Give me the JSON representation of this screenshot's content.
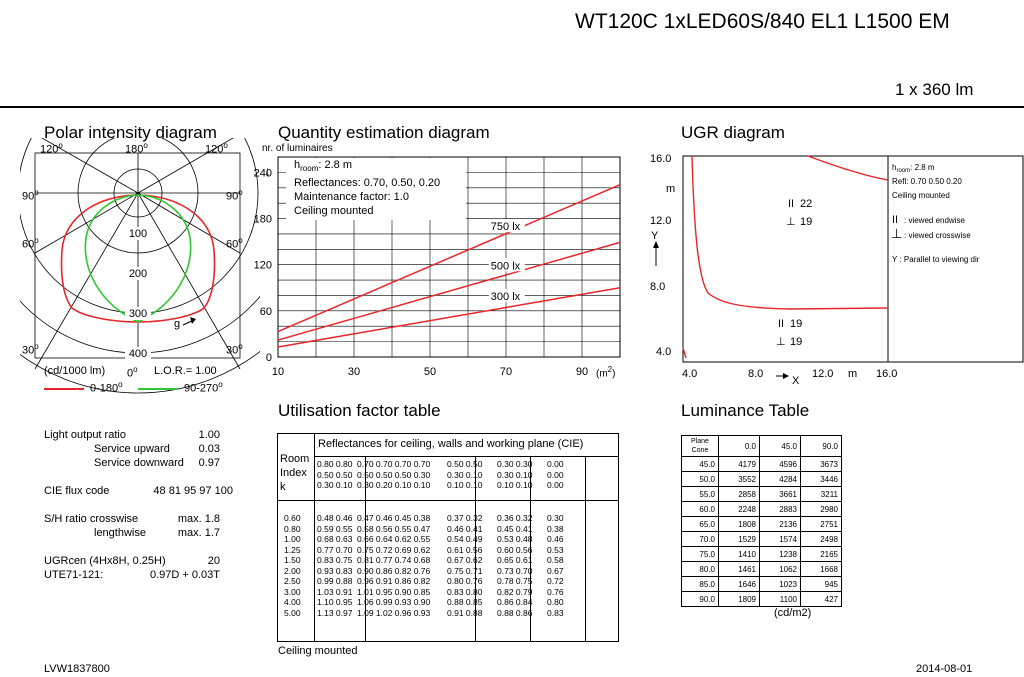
{
  "header": {
    "product_name": "WT120C 1xLED60S/840 EL1 L1500 EM",
    "lamp_flux": "1 x 360 lm"
  },
  "polar": {
    "title": "Polar intensity diagram",
    "angle_labels": {
      "top_left": "120",
      "top_center": "180",
      "top_right": "120",
      "mid_left_90": "90",
      "mid_right_90": "90",
      "mid_left_60": "60",
      "mid_right_60": "60",
      "bottom_left_30": "30",
      "bottom_center": "0",
      "bottom_right_30": "30"
    },
    "degree_sign": "o",
    "ring_labels": [
      "100",
      "200",
      "300",
      "400"
    ],
    "gamma_label": "g",
    "unit_label": "(cd/1000 lm)",
    "lor_label": "L.O.R.= 1.00",
    "legend": [
      {
        "label": "0-180",
        "color": "#e8262a"
      },
      {
        "label": "90-270",
        "color": "#2ec82e"
      }
    ]
  },
  "quantity": {
    "title": "Quantity estimation diagram",
    "y_axis_title": "nr. of luminaires",
    "info": {
      "hroom_label": "h",
      "hroom_sub": "room",
      "hroom_value": ": 2.8 m",
      "reflectances": "Reflectances: 0.70, 0.50, 0.20",
      "maintenance": "Maintenance factor: 1.0",
      "mounting": "Ceiling mounted"
    },
    "x_unit": "(m",
    "x_unit_sup": "2",
    "x_unit_close": ")"
  },
  "chart_data": {
    "type": "line",
    "xlabel": "(m2)",
    "ylabel": "nr. of luminaires",
    "xlim": [
      10,
      100
    ],
    "ylim": [
      0,
      260
    ],
    "x_ticks": [
      10,
      30,
      50,
      70,
      90
    ],
    "y_ticks": [
      0,
      60,
      120,
      180,
      240
    ],
    "series": [
      {
        "name": "750 lx",
        "x": [
          10,
          100
        ],
        "y": [
          33,
          224
        ]
      },
      {
        "name": "500 lx",
        "x": [
          10,
          100
        ],
        "y": [
          22,
          149
        ]
      },
      {
        "name": "300 lx",
        "x": [
          10,
          100
        ],
        "y": [
          13,
          90
        ]
      }
    ]
  },
  "ugr": {
    "title": "UGR diagram",
    "y_ticks": [
      "16.0",
      "12.0",
      "8.0",
      "4.0"
    ],
    "x_ticks": [
      "4.0",
      "8.0",
      "12.0",
      "16.0"
    ],
    "m_label_y": "m",
    "m_label_x": "m",
    "y_axis": "Y",
    "x_axis": "X",
    "val_endwise_top": "22",
    "val_crosswise_top": "19",
    "val_endwise_bottom": "19",
    "val_crosswise_bottom": "19",
    "legend": {
      "hroom_label": "h",
      "hroom_sub": "room",
      "hroom_value": ": 2.8 m",
      "refl": "Refl: 0.70 0.50 0.20",
      "mount": "Ceiling mounted",
      "endwise": ": viewed endwise",
      "crosswise": ": viewed crosswise",
      "parallel": "Y   : Parallel to viewing dir"
    }
  },
  "specs": {
    "light_output_ratio_label": "Light output ratio",
    "light_output_ratio": "1.00",
    "service_upward_label": "Service upward",
    "service_upward": "0.03",
    "service_downward_label": "Service downward",
    "service_downward": "0.97",
    "cie_flux_label": "CIE flux code",
    "cie_flux": "48  81  95  97  100",
    "sh_ratio_label": "S/H ratio",
    "crosswise_label": "crosswise",
    "crosswise": "max. 1.8",
    "lengthwise_label": "lengthwise",
    "lengthwise": "max. 1.7",
    "ugr_label": "UGRcen (4Hx8H, 0.25H)",
    "ugr": "20",
    "ute_label": "UTE71-121:",
    "ute": "0.97D + 0.03T"
  },
  "utilisation": {
    "title": "Utilisation factor table",
    "header": "Reflectances for ceiling, walls and working plane (CIE)",
    "room_index_label": [
      "Room",
      "Index",
      "k"
    ],
    "refl_groups": [
      [
        "0.80  0.80",
        "0.50  0.50",
        "0.30  0.10"
      ],
      [
        "0.70  0.70  0.70  0.70",
        "0.50  0.50  0.50  0.30",
        "0.30  0.20  0.10  0.10"
      ],
      [
        "0.50  0.50",
        "0.30  0.10",
        "0.10  0.10"
      ],
      [
        "0.30  0.30",
        "0.30  0.10",
        "0.10  0.10"
      ],
      [
        "0.00",
        "0.00",
        "0.00"
      ]
    ],
    "k_values": [
      "0.60",
      "0.80",
      "1.00",
      "1.25",
      "1.50",
      "2.00",
      "2.50",
      "3.00",
      "4.00",
      "5.00"
    ],
    "rows": [
      [
        "0.48  0.46",
        "0.47  0.46  0.45  0.38",
        "0.37  0.32",
        "0.36  0.32",
        "0.30"
      ],
      [
        "0.59  0.55",
        "0.58  0.56  0.55  0.47",
        "0.46  0.41",
        "0.45  0.41",
        "0.38"
      ],
      [
        "0.68  0.63",
        "0.66  0.64  0.62  0.55",
        "0.54  0.49",
        "0.53  0.48",
        "0.46"
      ],
      [
        "0.77  0.70",
        "0.75  0.72  0.69  0.62",
        "0.61  0.56",
        "0.60  0.56",
        "0.53"
      ],
      [
        "0.83  0.75",
        "0.81  0.77  0.74  0.68",
        "0.67  0.62",
        "0.65  0.61",
        "0.58"
      ],
      [
        "0.93  0.83",
        "0.90  0.86  0.82  0.76",
        "0.75  0.71",
        "0.73  0.70",
        "0.67"
      ],
      [
        "0.99  0.88",
        "0.96  0.91  0.86  0.82",
        "0.80  0.76",
        "0.78  0.75",
        "0.72"
      ],
      [
        "1.03  0.91",
        "1.01  0.95  0.90  0.85",
        "0.83  0.80",
        "0.82  0.79",
        "0.76"
      ],
      [
        "1.10  0.95",
        "1.06  0.99  0.93  0.90",
        "0.88  0.85",
        "0.86  0.84",
        "0.80"
      ],
      [
        "1.13  0.97",
        "1.09  1.02  0.96  0.93",
        "0.91  0.88",
        "0.88  0.86",
        "0.83"
      ]
    ],
    "footer": "Ceiling mounted"
  },
  "luminance": {
    "title": "Luminance Table",
    "corner_top": "Plane",
    "corner_bottom": "Cone",
    "columns": [
      "0.0",
      "45.0",
      "90.0"
    ],
    "rows": [
      {
        "cone": "45.0",
        "values": [
          "4179",
          "4596",
          "3673"
        ]
      },
      {
        "cone": "50.0",
        "values": [
          "3552",
          "4284",
          "3446"
        ]
      },
      {
        "cone": "55.0",
        "values": [
          "2858",
          "3661",
          "3211"
        ]
      },
      {
        "cone": "60.0",
        "values": [
          "2248",
          "2883",
          "2980"
        ]
      },
      {
        "cone": "65.0",
        "values": [
          "1808",
          "2136",
          "2751"
        ]
      },
      {
        "cone": "70.0",
        "values": [
          "1529",
          "1574",
          "2498"
        ]
      },
      {
        "cone": "75.0",
        "values": [
          "1410",
          "1238",
          "2165"
        ]
      },
      {
        "cone": "80.0",
        "values": [
          "1461",
          "1062",
          "1668"
        ]
      },
      {
        "cone": "85.0",
        "values": [
          "1646",
          "1023",
          "945"
        ]
      },
      {
        "cone": "90.0",
        "values": [
          "1809",
          "1100",
          "427"
        ]
      }
    ],
    "unit": "(cd/m2)"
  },
  "footer": {
    "code": "LVW1837800",
    "date": "2014-08-01"
  }
}
